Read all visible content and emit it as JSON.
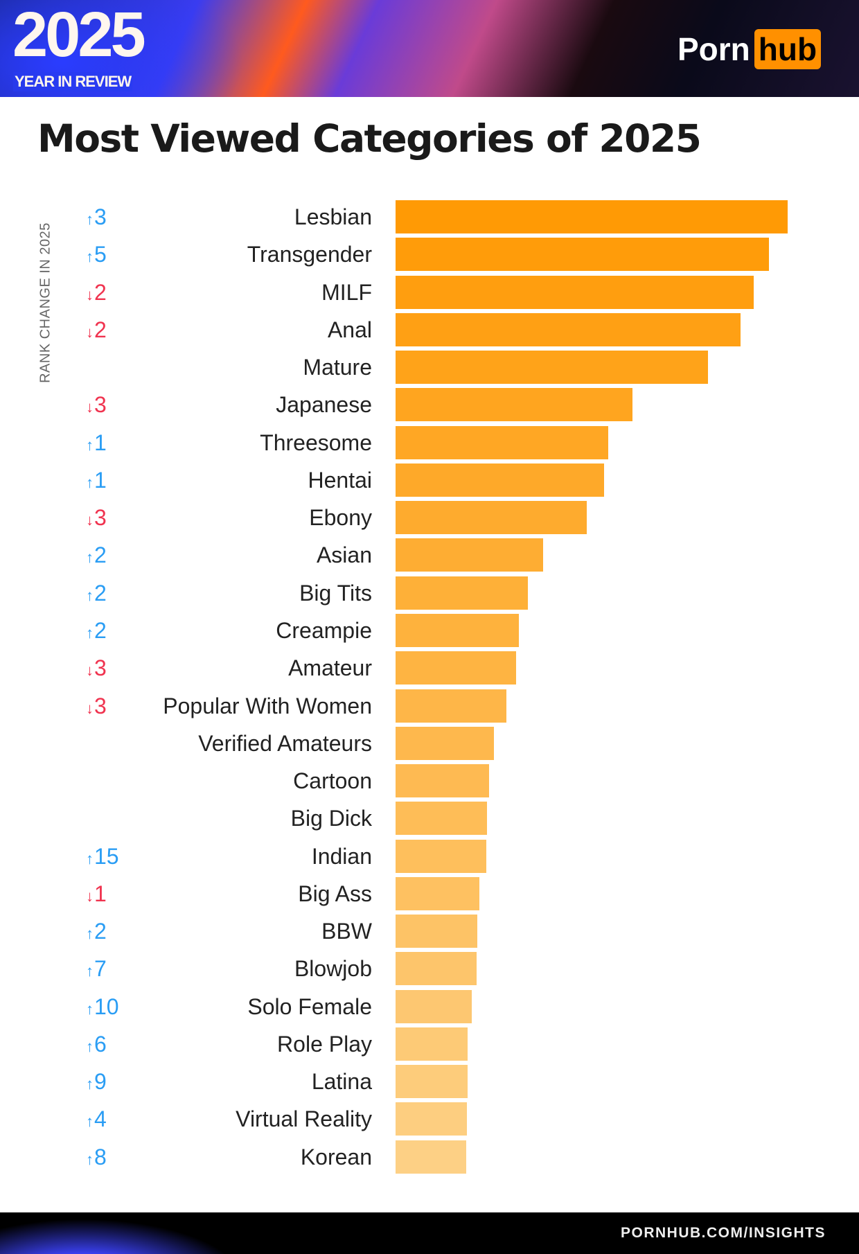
{
  "header": {
    "year": "2025",
    "subtitle": "YEAR IN REVIEW",
    "logo_left": "Porn",
    "logo_right": "hub"
  },
  "footer": {
    "url": "PORNHUB.COM/INSIGHTS"
  },
  "colors": {
    "up": "#2a9df4",
    "down": "#f0334f",
    "bar_top": "#ff9a05",
    "bar_bottom": "#fdd085",
    "logo_accent": "#ff9000"
  },
  "chart_data": {
    "type": "bar",
    "orientation": "horizontal",
    "title": "Most Viewed Categories of 2025",
    "change_label": "RANK CHANGE IN 2025",
    "value_unit": "relative bar length (% of top category, no axis shown)",
    "categories": [
      "Lesbian",
      "Transgender",
      "MILF",
      "Anal",
      "Mature",
      "Japanese",
      "Threesome",
      "Hentai",
      "Ebony",
      "Asian",
      "Big Tits",
      "Creampie",
      "Amateur",
      "Popular With Women",
      "Verified Amateurs",
      "Cartoon",
      "Big Dick",
      "Indian",
      "Big Ass",
      "BBW",
      "Blowjob",
      "Solo Female",
      "Role Play",
      "Latina",
      "Virtual Reality",
      "Korean"
    ],
    "values": [
      100,
      95.3,
      91.4,
      88.0,
      79.6,
      60.4,
      54.3,
      53.1,
      48.8,
      37.6,
      33.7,
      31.4,
      30.8,
      28.2,
      25.1,
      23.9,
      23.3,
      23.1,
      21.4,
      20.8,
      20.6,
      19.4,
      18.4,
      18.4,
      18.2,
      18.0
    ],
    "rank_changes": [
      3,
      5,
      -2,
      -2,
      0,
      -3,
      1,
      1,
      -3,
      2,
      2,
      2,
      -3,
      -3,
      0,
      0,
      0,
      15,
      -1,
      2,
      7,
      10,
      6,
      9,
      4,
      8
    ],
    "rank_change_text": [
      "3",
      "5",
      "2",
      "2",
      "",
      "3",
      "1",
      "1",
      "3",
      "2",
      "2",
      "2",
      "3",
      "3",
      "",
      "",
      "",
      "15",
      "1",
      "2",
      "7",
      "10",
      "6",
      "9",
      "4",
      "8"
    ],
    "grid": false,
    "legend": "none"
  }
}
